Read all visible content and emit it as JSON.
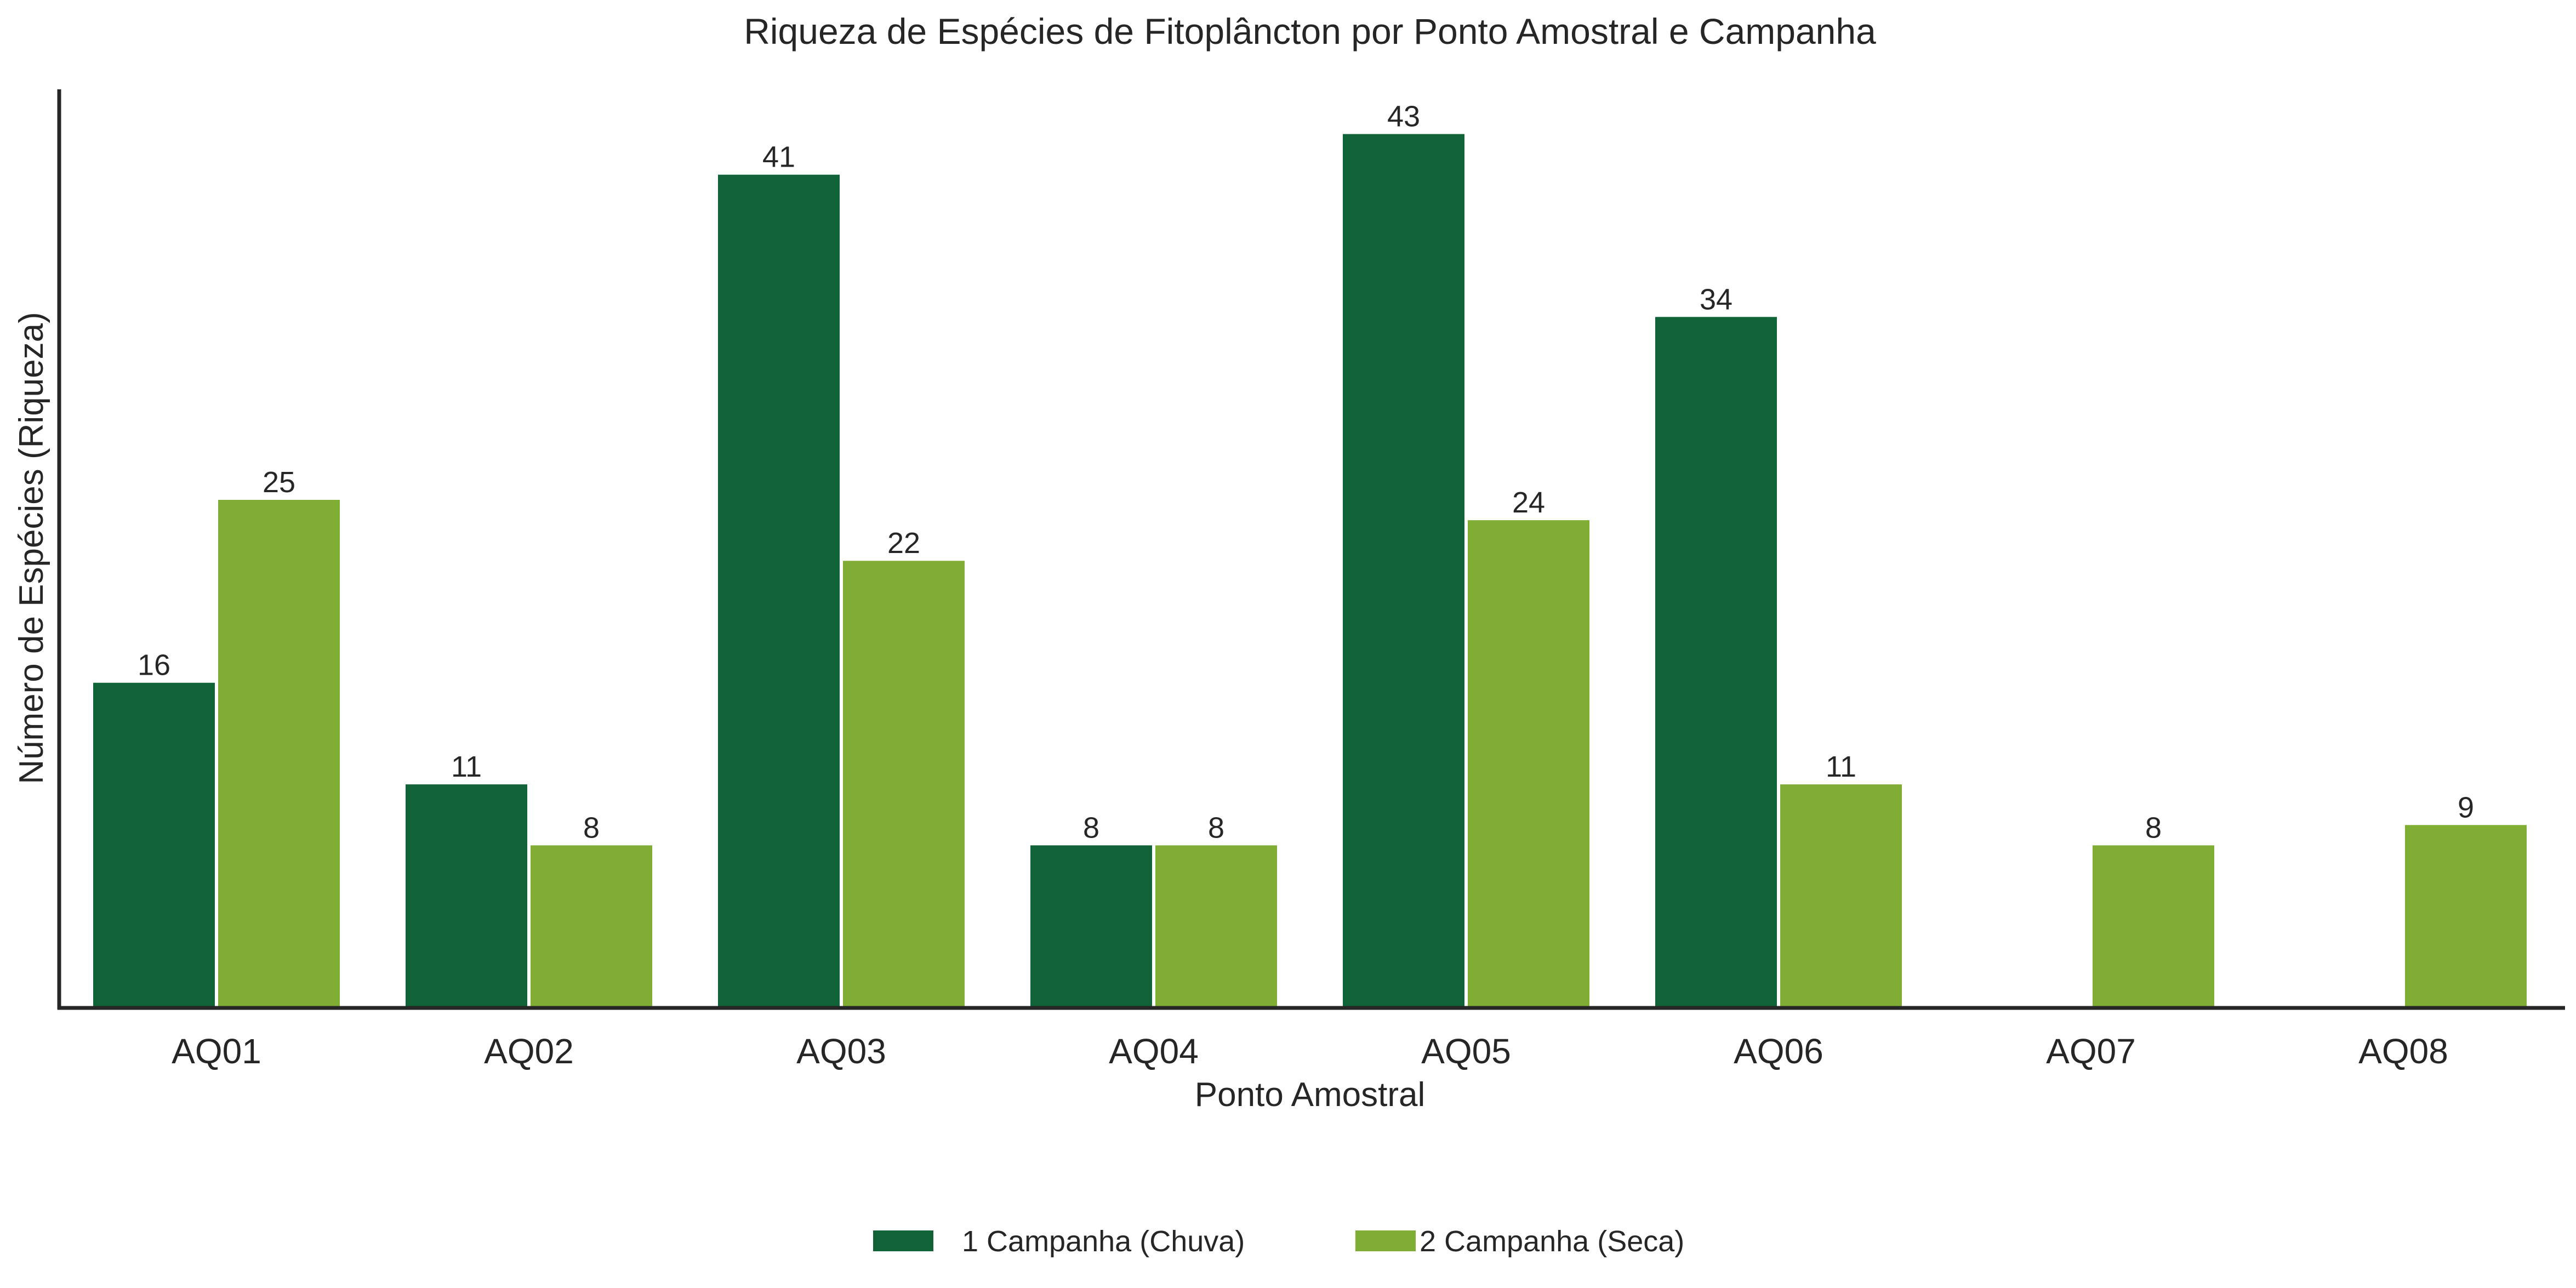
{
  "chart_data": {
    "type": "bar",
    "title": "Riqueza de Espécies de Fitoplâncton por Ponto Amostral e Campanha",
    "xlabel": "Ponto Amostral",
    "ylabel": "Número de Espécies (Riqueza)",
    "categories": [
      "AQ01",
      "AQ02",
      "AQ03",
      "AQ04",
      "AQ05",
      "AQ06",
      "AQ07",
      "AQ08"
    ],
    "series": [
      {
        "name": "1 Campanha (Chuva)",
        "color": "#0f6336",
        "values": [
          16,
          11,
          41,
          8,
          43,
          34,
          null,
          null
        ],
        "labels": [
          "16",
          "11",
          "41",
          "8",
          "43",
          "34",
          "",
          ""
        ]
      },
      {
        "name": "2 Campanha (Seca)",
        "color": "#80ae35",
        "values": [
          25,
          8,
          22,
          8,
          24,
          11,
          8,
          9
        ],
        "labels": [
          "25",
          "8",
          "22",
          "8",
          "24",
          "11",
          "8",
          "9"
        ]
      }
    ],
    "ylim": [
      0,
      45.2
    ],
    "grid": false,
    "y_ticks_visible": false,
    "legend_position": "bottom-center"
  }
}
